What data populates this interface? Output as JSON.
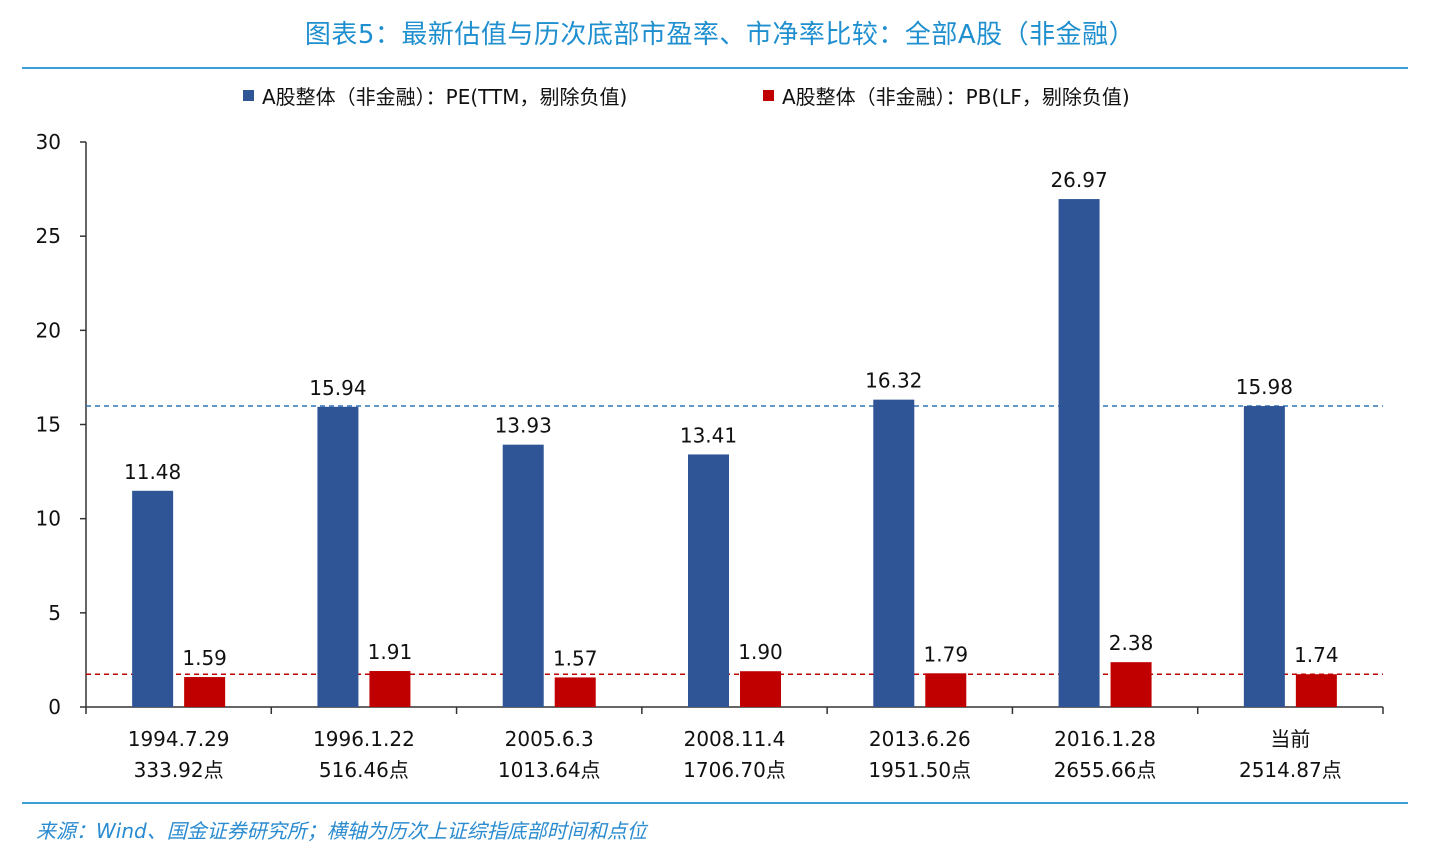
{
  "title": "图表5：最新估值与历次底部市盈率、市净率比较：全部A股（非金融）",
  "source": "来源：Wind、国金证券研究所；横轴为历次上证综指底部时间和点位",
  "colors": {
    "title": "#1f8fcf",
    "pe": "#2f5597",
    "pb": "#c00000",
    "pe_ref": "#2e75b6",
    "pb_ref": "#c00000"
  },
  "chart_data": {
    "type": "bar",
    "categories": [
      "1994.7.29",
      "1996.1.22",
      "2005.6.3",
      "2008.11.4",
      "2013.6.26",
      "2016.1.28",
      "当前"
    ],
    "category_sublabels": [
      "333.92点",
      "516.46点",
      "1013.64点",
      "1706.70点",
      "1951.50点",
      "2655.66点",
      "2514.87点"
    ],
    "series": [
      {
        "name": "A股整体（非金融）：PE(TTM，剔除负值)",
        "values": [
          11.48,
          15.94,
          13.93,
          13.41,
          16.32,
          26.97,
          15.98
        ],
        "labels": [
          "11.48",
          "15.94",
          "13.93",
          "13.41",
          "16.32",
          "26.97",
          "15.98"
        ]
      },
      {
        "name": "A股整体（非金融）：PB(LF，剔除负值)",
        "values": [
          1.59,
          1.91,
          1.57,
          1.9,
          1.79,
          2.38,
          1.74
        ],
        "labels": [
          "1.59",
          "1.91",
          "1.57",
          "1.90",
          "1.79",
          "2.38",
          "1.74"
        ]
      }
    ],
    "reference_lines": [
      {
        "series": 0,
        "value": 15.98,
        "style": "dashed"
      },
      {
        "series": 1,
        "value": 1.74,
        "style": "dashed"
      }
    ],
    "ylim": [
      0,
      30
    ],
    "yticks": [
      0,
      5,
      10,
      15,
      20,
      25,
      30
    ],
    "grid": false,
    "legend_position": "top-center"
  }
}
